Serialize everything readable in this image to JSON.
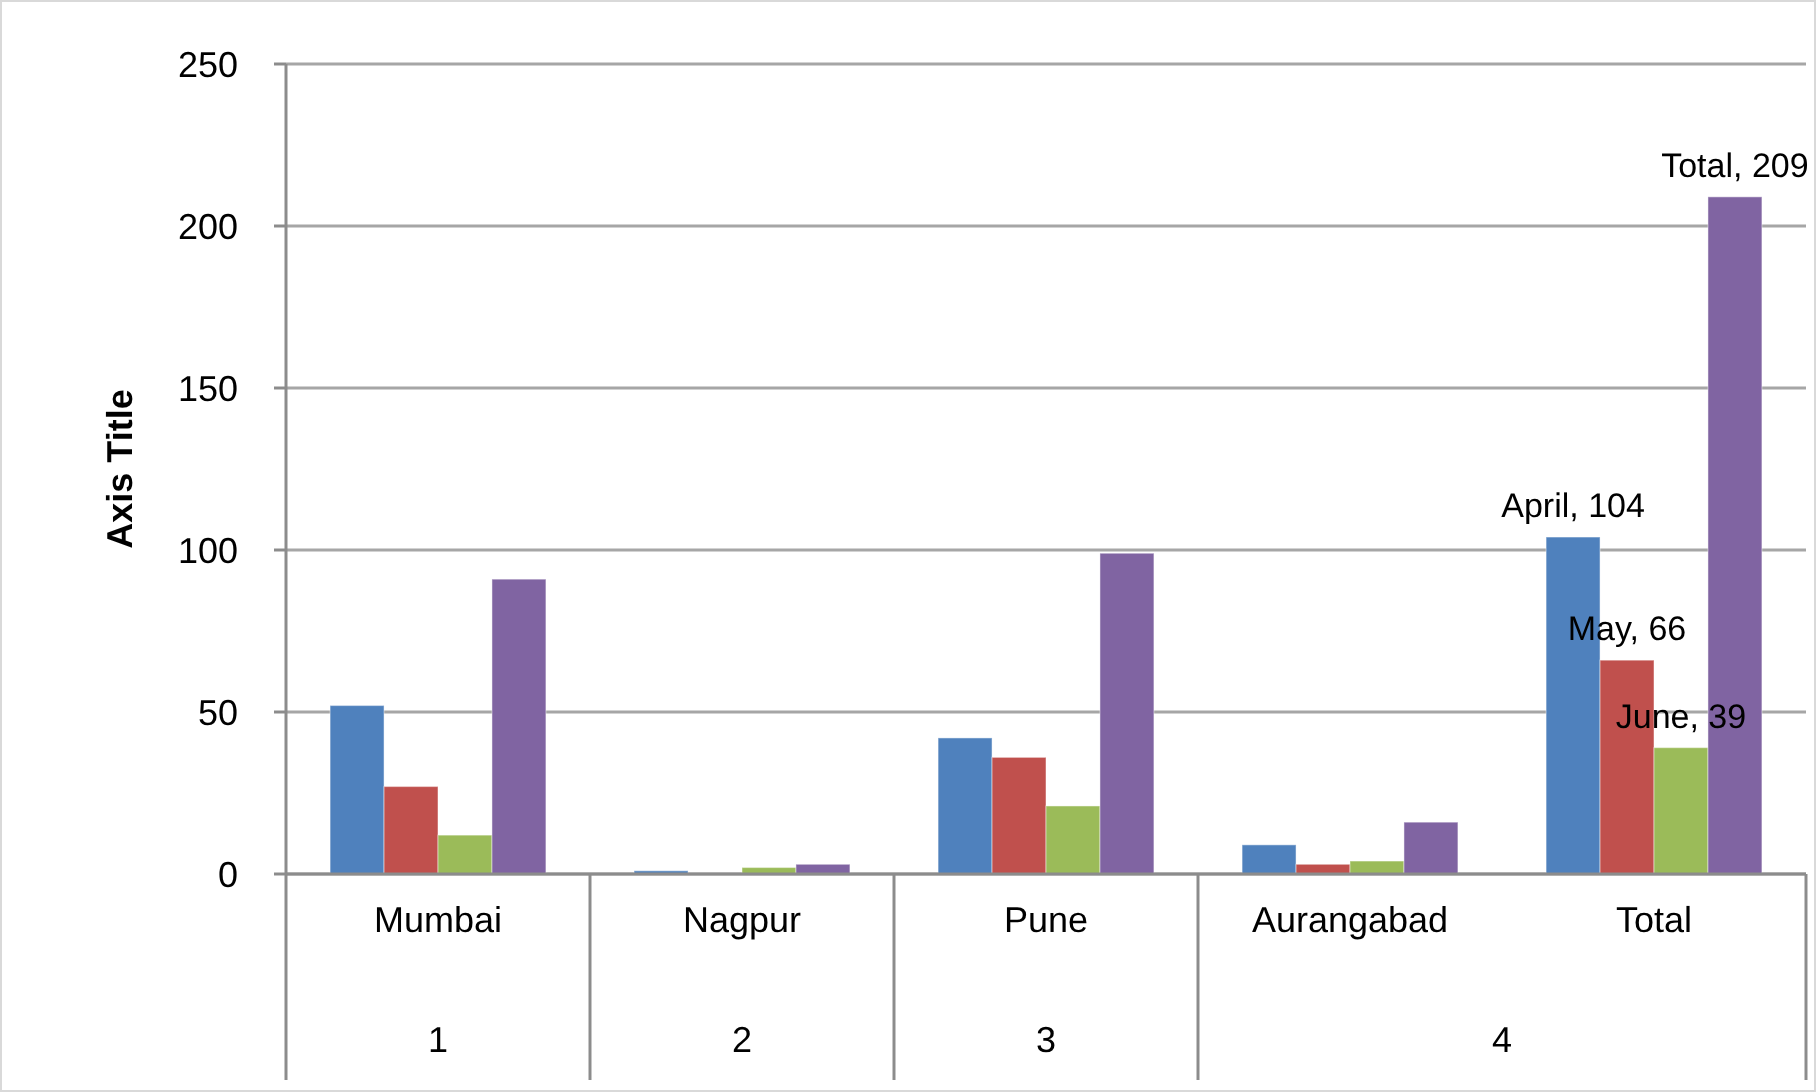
{
  "chart_data": {
    "type": "bar",
    "ylabel": "Axis Title",
    "categories": [
      "Mumbai",
      "Nagpur",
      "Pune",
      "Aurangabad",
      "Total"
    ],
    "series": [
      {
        "color": "#4f81bd",
        "values": [
          52,
          1,
          42,
          9,
          104
        ],
        "value_labels": [
          null,
          null,
          null,
          null,
          "April, 104"
        ]
      },
      {
        "color": "#c0504d",
        "values": [
          27,
          0,
          36,
          3,
          66
        ],
        "value_labels": [
          null,
          null,
          null,
          null,
          "May, 66"
        ]
      },
      {
        "color": "#9bbb59",
        "values": [
          12,
          2,
          21,
          4,
          39
        ],
        "value_labels": [
          null,
          null,
          null,
          null,
          "June, 39"
        ]
      },
      {
        "color": "#8064a2",
        "values": [
          91,
          3,
          99,
          16,
          209
        ],
        "value_labels": [
          null,
          null,
          null,
          null,
          "Total, 209"
        ]
      }
    ],
    "annotations": [
      "1",
      "2",
      "3",
      "4"
    ],
    "ylim": [
      0,
      250
    ],
    "yticks": [
      0,
      50,
      100,
      150,
      200,
      250
    ],
    "grid": "y",
    "legend": false
  }
}
